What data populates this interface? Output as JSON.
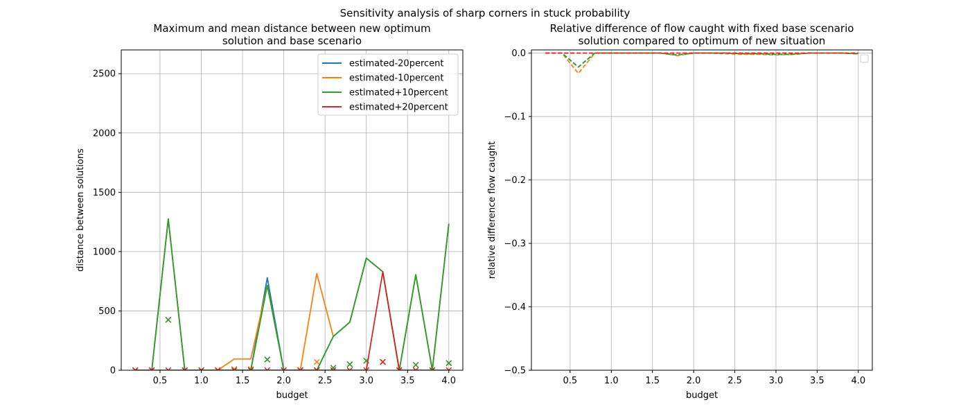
{
  "suptitle": "Sensitivity analysis of sharp corners in stuck probability",
  "colors": {
    "estimated-20percent": "#1f77b4",
    "estimated-10percent": "#ff7f0e",
    "estimated+10percent": "#2ca02c",
    "estimated+20percent": "#d62728",
    "grid": "#b0b0b0"
  },
  "chart_data": [
    {
      "type": "line",
      "title": "Maximum and mean distance between new optimum\nsolution and base scenario",
      "xlabel": "budget",
      "ylabel": "distance between solutions",
      "xlim": [
        0.03,
        4.17
      ],
      "ylim": [
        0,
        2700
      ],
      "xticks": [
        0.5,
        1.0,
        1.5,
        2.0,
        2.5,
        3.0,
        3.5,
        4.0
      ],
      "xtick_labels": [
        "0.5",
        "1.0",
        "1.5",
        "2.0",
        "2.5",
        "3.0",
        "3.5",
        "4.0"
      ],
      "yticks": [
        0,
        500,
        1000,
        1500,
        2000,
        2500
      ],
      "ytick_labels": [
        "0",
        "500",
        "1000",
        "1500",
        "2000",
        "2500"
      ],
      "grid": true,
      "legend": "top-right",
      "x": [
        0.2,
        0.4,
        0.6,
        0.8,
        1.0,
        1.2,
        1.4,
        1.6,
        1.8,
        2.0,
        2.2,
        2.4,
        2.6,
        2.8,
        3.0,
        3.2,
        3.4,
        3.6,
        3.8,
        4.0
      ],
      "series": [
        {
          "name": "estimated-20percent",
          "max": [
            0,
            0,
            1275,
            0,
            0,
            0,
            0,
            0,
            780,
            0,
            0,
            0,
            285,
            405,
            945,
            830,
            0,
            805,
            0,
            1235
          ],
          "mean": [
            0,
            0,
            425,
            0,
            0,
            0,
            0,
            0,
            90,
            0,
            0,
            0,
            20,
            50,
            80,
            70,
            0,
            45,
            0,
            60
          ]
        },
        {
          "name": "estimated-10percent",
          "max": [
            0,
            0,
            1275,
            0,
            0,
            0,
            95,
            95,
            715,
            0,
            0,
            815,
            285,
            405,
            945,
            830,
            0,
            805,
            0,
            1235
          ],
          "mean": [
            0,
            0,
            425,
            0,
            0,
            0,
            10,
            10,
            90,
            0,
            0,
            70,
            20,
            50,
            80,
            70,
            0,
            45,
            0,
            60
          ]
        },
        {
          "name": "estimated+10percent",
          "max": [
            0,
            0,
            1275,
            0,
            0,
            0,
            0,
            0,
            715,
            0,
            0,
            0,
            285,
            405,
            945,
            830,
            0,
            805,
            0,
            1235
          ],
          "mean": [
            0,
            0,
            425,
            0,
            0,
            0,
            0,
            0,
            90,
            0,
            0,
            0,
            20,
            50,
            80,
            70,
            0,
            45,
            0,
            60
          ]
        },
        {
          "name": "estimated+20percent",
          "max": [
            0,
            0,
            0,
            0,
            0,
            0,
            0,
            0,
            0,
            0,
            0,
            0,
            0,
            0,
            0,
            830,
            0,
            0,
            0,
            0
          ],
          "mean": [
            0,
            0,
            0,
            0,
            0,
            0,
            0,
            0,
            0,
            0,
            0,
            0,
            0,
            0,
            0,
            70,
            0,
            0,
            0,
            0
          ]
        }
      ]
    },
    {
      "type": "line",
      "title": "Relative difference of flow caught with fixed base scenario\nsolution compared to optimum of new situation",
      "xlabel": "budget",
      "ylabel": "relative difference flow caught",
      "xlim": [
        0.03,
        4.17
      ],
      "ylim": [
        -0.5,
        0.005
      ],
      "xticks": [
        0.5,
        1.0,
        1.5,
        2.0,
        2.5,
        3.0,
        3.5,
        4.0
      ],
      "xtick_labels": [
        "0.5",
        "1.0",
        "1.5",
        "2.0",
        "2.5",
        "3.0",
        "3.5",
        "4.0"
      ],
      "yticks": [
        0.0,
        -0.1,
        -0.2,
        -0.3,
        -0.4,
        -0.5
      ],
      "ytick_labels": [
        "0.0",
        "−0.1",
        "−0.2",
        "−0.3",
        "−0.4",
        "−0.5"
      ],
      "grid": true,
      "legend": "top-right (empty)",
      "x": [
        0.2,
        0.4,
        0.6,
        0.8,
        1.0,
        1.2,
        1.4,
        1.6,
        1.8,
        2.0,
        2.2,
        2.4,
        2.6,
        2.8,
        3.0,
        3.2,
        3.4,
        3.6,
        3.8,
        4.0
      ],
      "series": [
        {
          "name": "estimated-20percent",
          "values": [
            0,
            0,
            -0.022,
            0,
            0,
            0,
            0,
            0,
            -0.003,
            0,
            0,
            0,
            -0.001,
            -0.001,
            -0.002,
            -0.002,
            0,
            0,
            0,
            -0.001
          ]
        },
        {
          "name": "estimated-10percent",
          "values": [
            0,
            0,
            -0.032,
            0,
            0,
            0,
            0,
            0,
            -0.004,
            0,
            0,
            -0.001,
            -0.002,
            -0.002,
            -0.003,
            -0.002,
            0,
            0,
            0,
            -0.001
          ]
        },
        {
          "name": "estimated+10percent",
          "values": [
            0,
            0,
            -0.022,
            0,
            0,
            0,
            0,
            0,
            -0.003,
            0,
            0,
            0,
            -0.001,
            -0.001,
            -0.002,
            -0.002,
            0,
            0,
            0,
            -0.001
          ]
        },
        {
          "name": "estimated+20percent",
          "values": [
            0,
            0,
            0,
            0,
            0,
            0,
            0,
            0,
            0,
            0,
            0,
            0,
            0,
            0,
            0,
            0,
            0,
            0,
            0,
            0
          ]
        }
      ]
    }
  ]
}
